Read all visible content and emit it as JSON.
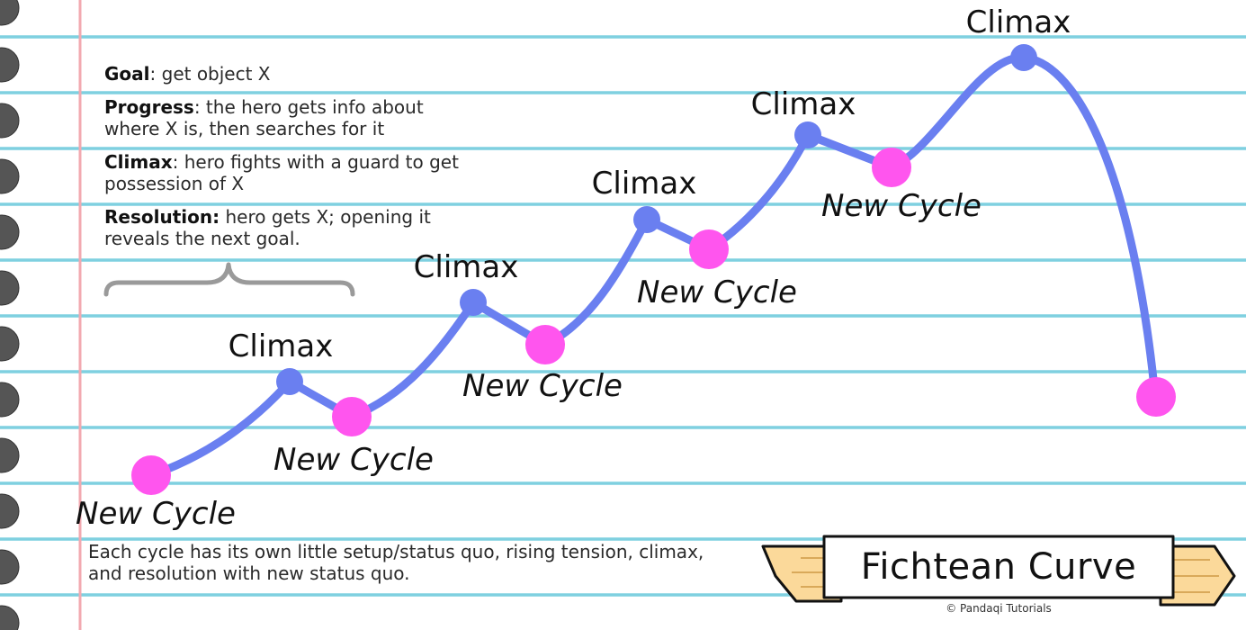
{
  "legend": [
    {
      "term": "Goal",
      "sep": ":",
      "text": " get object X"
    },
    {
      "term": "Progress",
      "sep": ":",
      "text": " the hero gets info about where X is, then searches for it"
    },
    {
      "term": "Climax",
      "sep": ":",
      "text": " hero fights with a guard to get possession of X"
    },
    {
      "term": "Resolution:",
      "sep": "",
      "text": " hero gets X; opening it reveals the next goal."
    }
  ],
  "footnote": "Each cycle has its own little setup/status quo, rising tension, climax, and resolution with new status quo.",
  "banner": {
    "title": "Fichtean Curve"
  },
  "credit": "© Pandaqi Tutorials",
  "curve": {
    "new_cycle_label": "New Cycle",
    "climax_label": "Climax",
    "colors": {
      "line": "#6a7ff0",
      "climax": "#6a7ff0",
      "new_cycle": "#ff55ee",
      "rule": "#7fd0e0",
      "margin": "#f2a9b0",
      "banner": "#fbd99a"
    }
  }
}
